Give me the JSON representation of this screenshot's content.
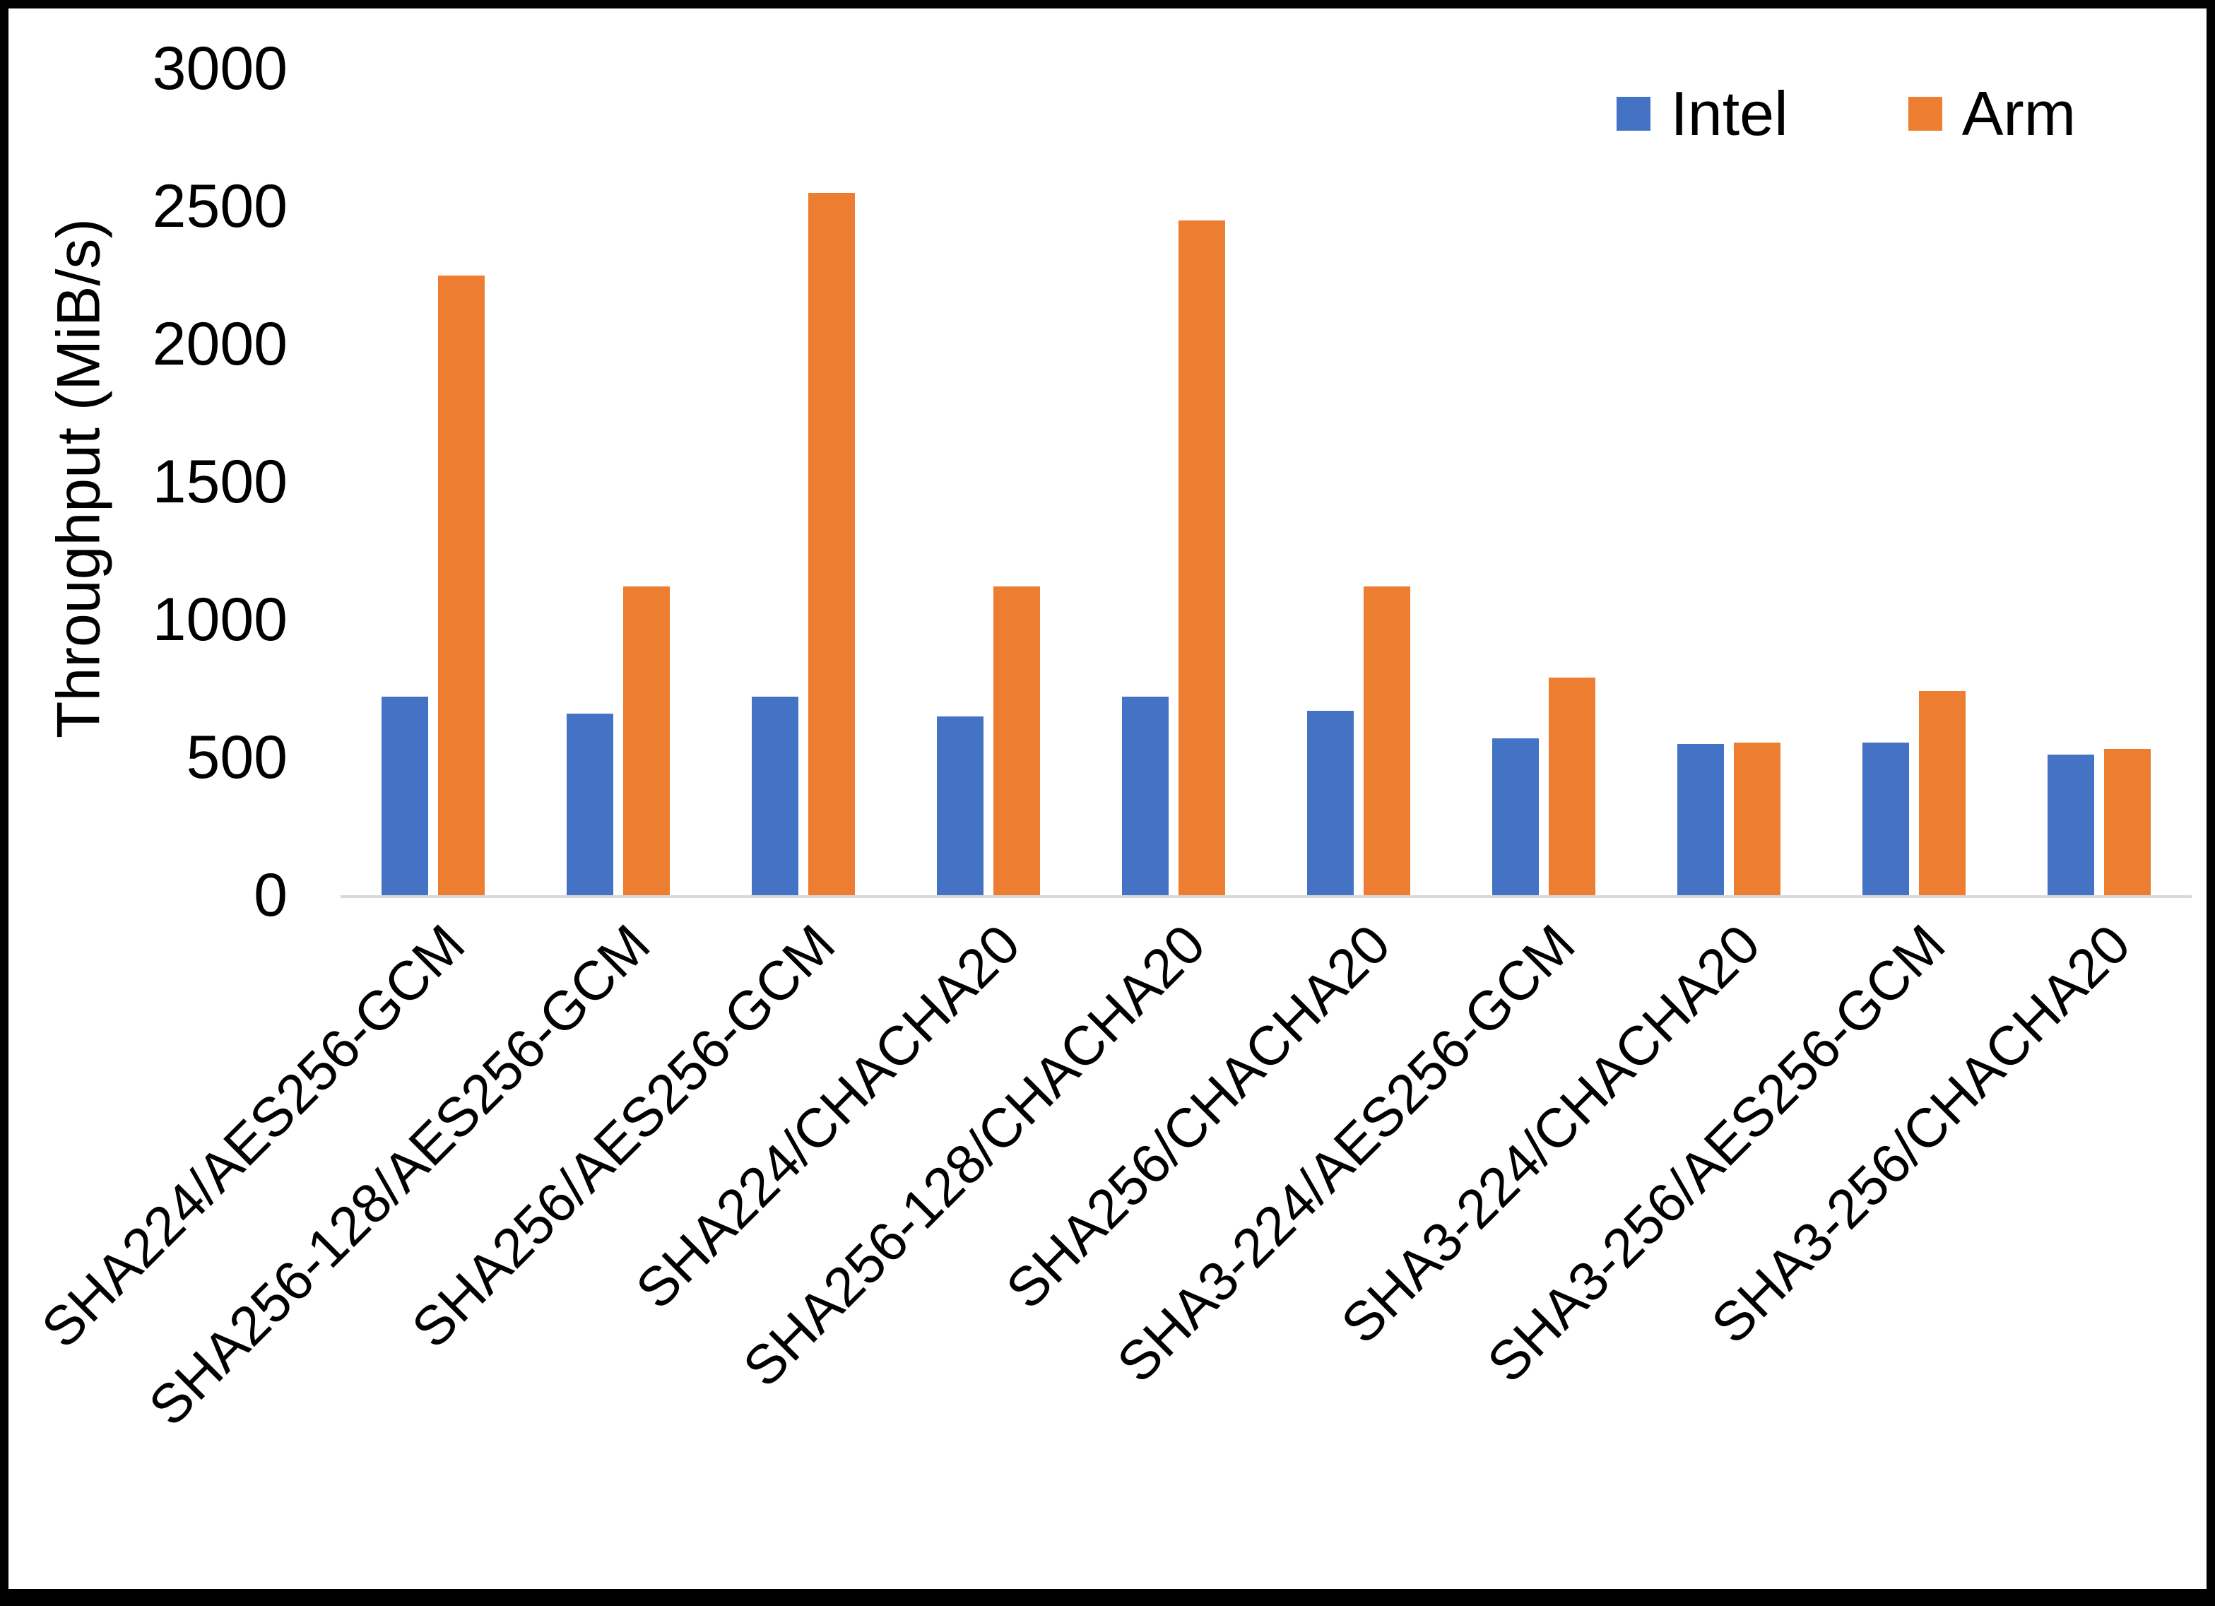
{
  "chart_data": {
    "type": "bar",
    "title": "",
    "xlabel": "",
    "ylabel": "Throughput (MiB/s)",
    "ylim": [
      0,
      3000
    ],
    "yticks": [
      0,
      500,
      1000,
      1500,
      2000,
      2500,
      3000
    ],
    "grid": false,
    "legend_position": "top-right",
    "categories": [
      "SHA224/AES256-GCM",
      "SHA256-128/AES256-GCM",
      "SHA256/AES256-GCM",
      "SHA224/CHACHA20",
      "SHA256-128/CHACHA20",
      "SHA256/CHACHA20",
      "SHA3-224/AES256-GCM",
      "SHA3-224/CHACHA20",
      "SHA3-256/AES256-GCM",
      "SHA3-256/CHACHA20"
    ],
    "series": [
      {
        "name": "Intel",
        "color": "#4472C4",
        "values": [
          720,
          660,
          720,
          650,
          720,
          670,
          570,
          550,
          555,
          510
        ]
      },
      {
        "name": "Arm",
        "color": "#ED7D31",
        "values": [
          2250,
          1120,
          2550,
          1120,
          2450,
          1120,
          790,
          555,
          740,
          530
        ]
      }
    ]
  },
  "colors": {
    "intel": "#4472C4",
    "arm": "#ED7D31",
    "axis_line": "#d9d9d9",
    "text": "#000000",
    "frame_border": "#000000",
    "background": "#ffffff"
  }
}
